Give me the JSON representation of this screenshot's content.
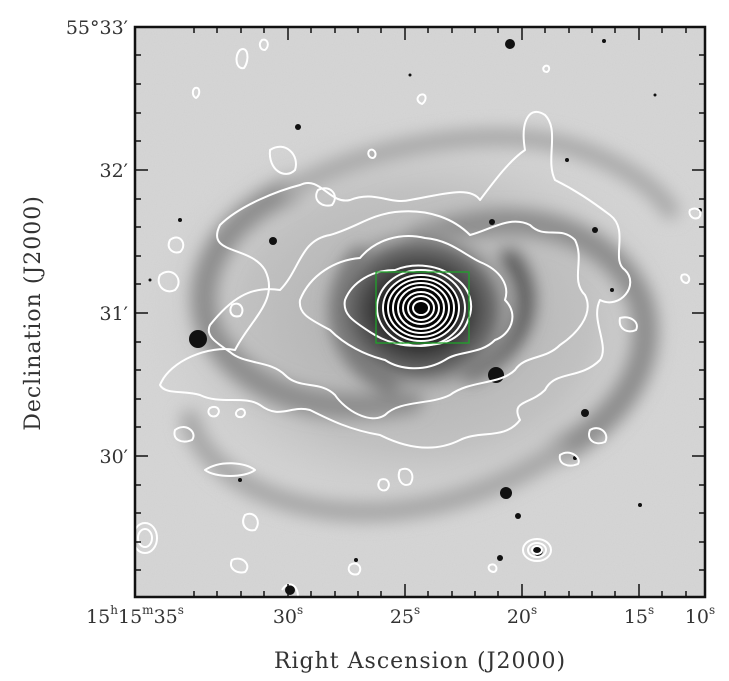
{
  "figure": {
    "x_axis_title": "Right Ascension (J2000)",
    "y_axis_title": "Declination (J2000)",
    "dec_ticks": [
      {
        "deg": "55°",
        "min": "33′"
      },
      {
        "deg": "",
        "min": "32′"
      },
      {
        "deg": "",
        "min": "31′"
      },
      {
        "deg": "",
        "min": "30′"
      }
    ],
    "ra_ticks": [
      {
        "h": "15",
        "m": "15",
        "s": "35"
      },
      {
        "s": "30"
      },
      {
        "s": "25"
      },
      {
        "s": "20"
      },
      {
        "s": "15"
      },
      {
        "s": "10"
      }
    ],
    "image_style": "inverted greyscale optical image of spiral galaxy",
    "overlay": {
      "contour_color": "#ffffff",
      "box_color": "#1fa32a"
    }
  }
}
